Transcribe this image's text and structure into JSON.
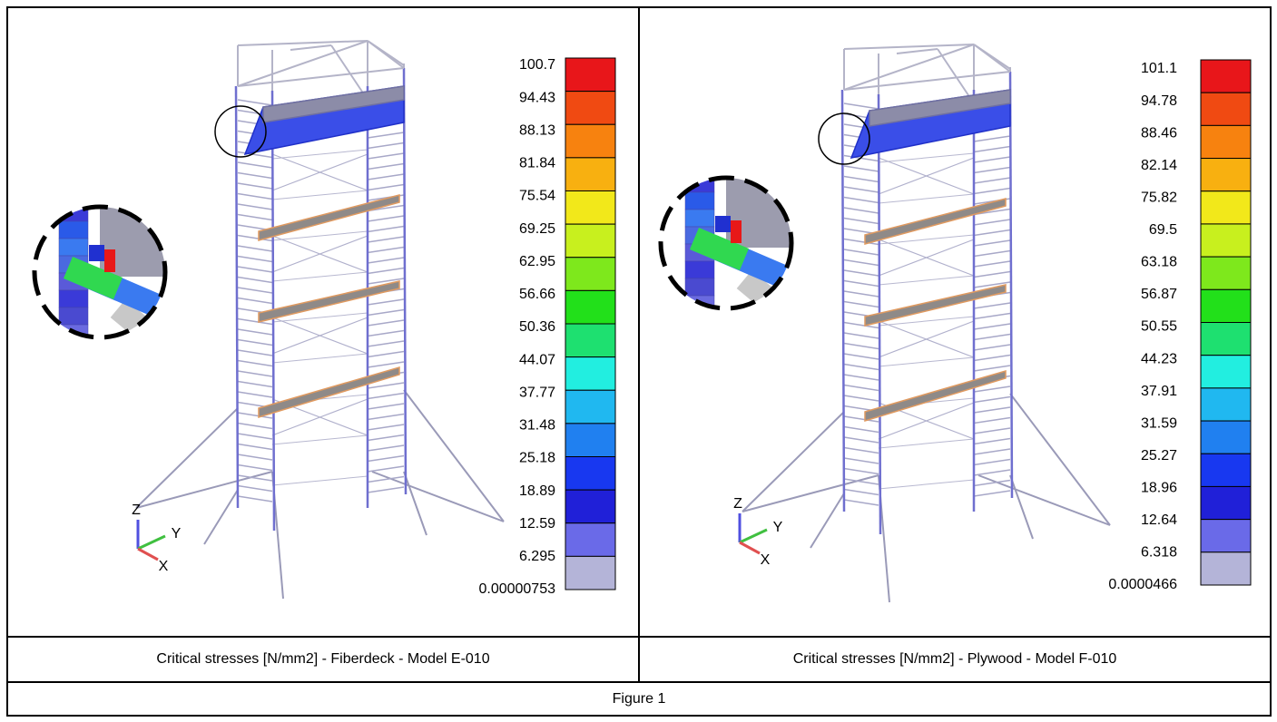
{
  "panels": [
    {
      "legend": [
        "100.7",
        "94.43",
        "88.13",
        "81.84",
        "75.54",
        "69.25",
        "62.95",
        "56.66",
        "50.36",
        "44.07",
        "37.77",
        "31.48",
        "25.18",
        "18.89",
        "12.59",
        "6.295",
        "0.00000753"
      ],
      "axes": {
        "z": "Z",
        "y": "Y",
        "x": "X"
      },
      "caption": "Critical stresses [N/mm2] - Fiberdeck - Model E-010"
    },
    {
      "legend": [
        "101.1",
        "94.78",
        "88.46",
        "82.14",
        "75.82",
        "69.5",
        "63.18",
        "56.87",
        "50.55",
        "44.23",
        "37.91",
        "31.59",
        "25.27",
        "18.96",
        "12.64",
        "6.318",
        "0.0000466"
      ],
      "axes": {
        "z": "Z",
        "y": "Y",
        "x": "X"
      },
      "caption": "Critical stresses [N/mm2] - Plywood - Model F-010"
    }
  ],
  "figure_caption": "Figure 1"
}
